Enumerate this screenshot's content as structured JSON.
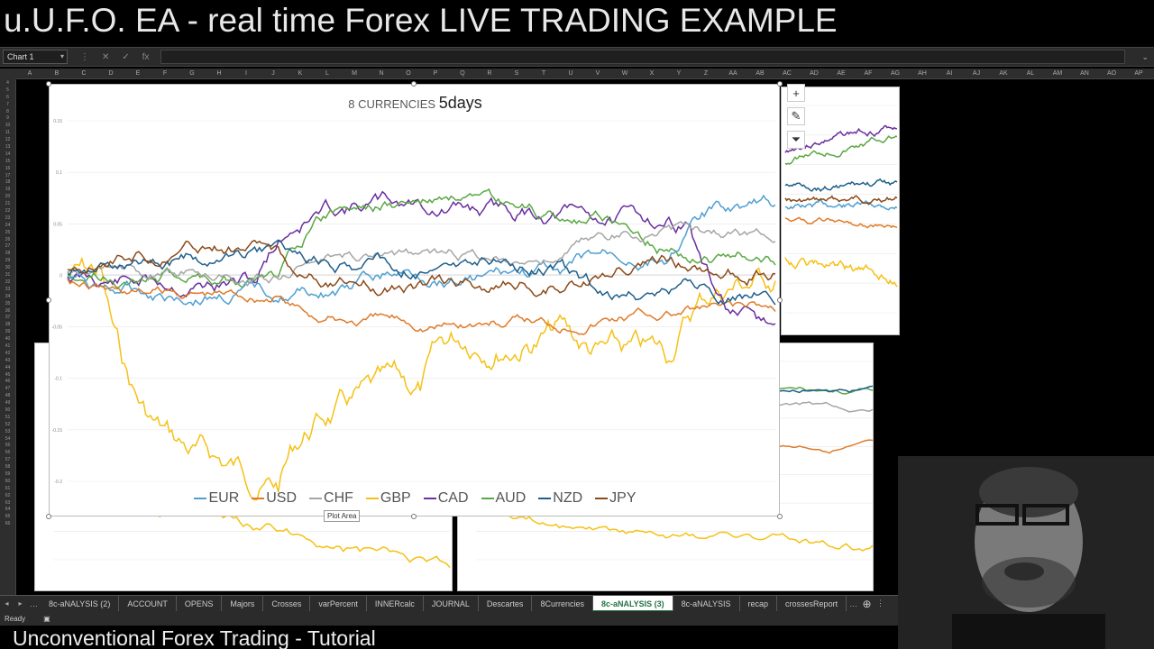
{
  "video": {
    "title": "u.U.F.O. EA - real time Forex LIVE TRADING EXAMPLE",
    "subtitle": "Unconventional Forex Trading - Tutorial"
  },
  "formula_bar": {
    "name_box": "Chart 1",
    "cancel_icon": "close-icon",
    "enter_icon": "check-icon",
    "fx_label": "fx"
  },
  "columns": [
    "A",
    "B",
    "C",
    "D",
    "E",
    "F",
    "G",
    "H",
    "I",
    "J",
    "K",
    "L",
    "M",
    "N",
    "O",
    "P",
    "Q",
    "R",
    "S",
    "T",
    "U",
    "V",
    "W",
    "X",
    "Y",
    "Z",
    "AA",
    "AB",
    "AC",
    "AD",
    "AE",
    "AF",
    "AG",
    "AH",
    "AI",
    "AJ",
    "AK",
    "AL",
    "AM",
    "AN",
    "AO",
    "AP"
  ],
  "rows_start": 4,
  "rows_end": 66,
  "chart": {
    "title_small": "8 CURRENCIES",
    "title_big": "5days",
    "plot_area_tip": "Plot Area",
    "legend": [
      {
        "name": "EUR",
        "color": "#4f9fd1"
      },
      {
        "name": "USD",
        "color": "#e07b2a"
      },
      {
        "name": "CHF",
        "color": "#a6a6a6"
      },
      {
        "name": "GBP",
        "color": "#f5c116"
      },
      {
        "name": "CAD",
        "color": "#6a2fa0"
      },
      {
        "name": "AUD",
        "color": "#5aa843"
      },
      {
        "name": "NZD",
        "color": "#1f5f8b"
      },
      {
        "name": "JPY",
        "color": "#8b4a1a"
      }
    ],
    "y_ticks": [
      "0.15",
      "0.1",
      "0.05",
      "0",
      "-0.05",
      "-0.1",
      "-0.15",
      "-0.2"
    ],
    "ylim": [
      -0.2,
      0.15
    ]
  },
  "tools": {
    "add": "plus-icon",
    "style": "brush-icon",
    "filter": "filter-icon"
  },
  "sheet_tabs": [
    {
      "label": "8c-aNALYSIS (2)",
      "active": false
    },
    {
      "label": "ACCOUNT",
      "active": false
    },
    {
      "label": "OPENS",
      "active": false
    },
    {
      "label": "Majors",
      "active": false
    },
    {
      "label": "Crosses",
      "active": false
    },
    {
      "label": "varPercent",
      "active": false
    },
    {
      "label": "INNERcalc",
      "active": false
    },
    {
      "label": "JOURNAL",
      "active": false
    },
    {
      "label": "Descartes",
      "active": false
    },
    {
      "label": "8Currencies",
      "active": false
    },
    {
      "label": "8c-aNALYSIS (3)",
      "active": true
    },
    {
      "label": "8c-aNALYSIS",
      "active": false
    },
    {
      "label": "recap",
      "active": false
    },
    {
      "label": "crossesReport",
      "active": false
    }
  ],
  "status": {
    "ready": "Ready"
  }
}
